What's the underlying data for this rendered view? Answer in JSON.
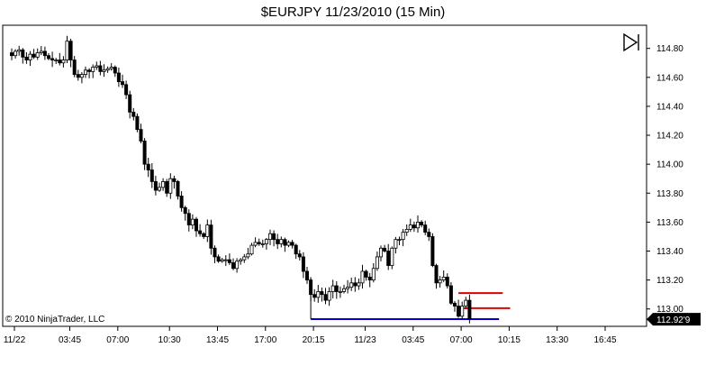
{
  "chart_data": {
    "type": "candlestick",
    "title": "$EURJPY  11/23/2010 (15 Min)",
    "symbol": "$EURJPY",
    "date": "11/23/2010",
    "interval": "15 Min",
    "copyright": "© 2010 NinjaTrader, LLC",
    "last_price_label": "112.92'9",
    "last_price": 112.929,
    "y_ticks": [
      "114.80",
      "114.60",
      "114.40",
      "114.20",
      "114.00",
      "113.80",
      "113.60",
      "113.40",
      "113.20",
      "113.00"
    ],
    "y_tick_values": [
      114.8,
      114.6,
      114.4,
      114.2,
      114.0,
      113.8,
      113.6,
      113.4,
      113.2,
      113.0
    ],
    "ylim": [
      112.88,
      114.96
    ],
    "x_ticks": [
      "11/22",
      "03:45",
      "07:00",
      "10:30",
      "13:45",
      "17:00",
      "20:15",
      "11/23",
      "03:45",
      "07:00",
      "10:15",
      "13:30",
      "16:45"
    ],
    "x_tick_bar_index": [
      0,
      15,
      28,
      42,
      55,
      68,
      81,
      95,
      108,
      121,
      134,
      147,
      160
    ],
    "closes": [
      114.75,
      114.78,
      114.79,
      114.74,
      114.72,
      114.76,
      114.74,
      114.77,
      114.78,
      114.75,
      114.73,
      114.72,
      114.72,
      114.7,
      114.72,
      114.85,
      114.72,
      114.62,
      114.6,
      114.62,
      114.65,
      114.64,
      114.67,
      114.68,
      114.64,
      114.65,
      114.66,
      114.67,
      114.63,
      114.57,
      114.55,
      114.48,
      114.36,
      114.33,
      114.24,
      114.16,
      114.0,
      113.96,
      113.88,
      113.82,
      113.84,
      113.88,
      113.8,
      113.9,
      113.88,
      113.78,
      113.7,
      113.66,
      113.58,
      113.62,
      113.54,
      113.52,
      113.5,
      113.58,
      113.42,
      113.36,
      113.33,
      113.34,
      113.34,
      113.32,
      113.28,
      113.33,
      113.34,
      113.36,
      113.38,
      113.44,
      113.46,
      113.45,
      113.45,
      113.48,
      113.52,
      113.48,
      113.45,
      113.48,
      113.44,
      113.46,
      113.44,
      113.38,
      113.36,
      113.26,
      113.2,
      113.1,
      113.08,
      113.12,
      113.1,
      113.06,
      113.12,
      113.16,
      113.12,
      113.12,
      113.14,
      113.15,
      113.18,
      113.16,
      113.18,
      113.26,
      113.22,
      113.2,
      113.28,
      113.36,
      113.42,
      113.4,
      113.3,
      113.42,
      113.48,
      113.48,
      113.53,
      113.55,
      113.58,
      113.56,
      113.6,
      113.58,
      113.53,
      113.5,
      113.3,
      113.18,
      113.2,
      113.22,
      113.16,
      113.04,
      113.02,
      112.95,
      113.02,
      113.06,
      112.93
    ],
    "levels": [
      {
        "name": "resistance-1",
        "value": 113.11,
        "color": "#e00000",
        "from_bar": 121,
        "to_bar": 133
      },
      {
        "name": "resistance-2",
        "value": 113.005,
        "color": "#e00000",
        "from_bar": 121,
        "to_bar": 135
      },
      {
        "name": "support",
        "value": 112.93,
        "color": "#0000d0",
        "from_bar": 81,
        "to_bar": 132
      }
    ],
    "colors": {
      "up": "#ffffff",
      "down": "#000000",
      "wick": "#000000",
      "axis": "#000000",
      "price_marker": "#000000"
    },
    "grid": false
  }
}
